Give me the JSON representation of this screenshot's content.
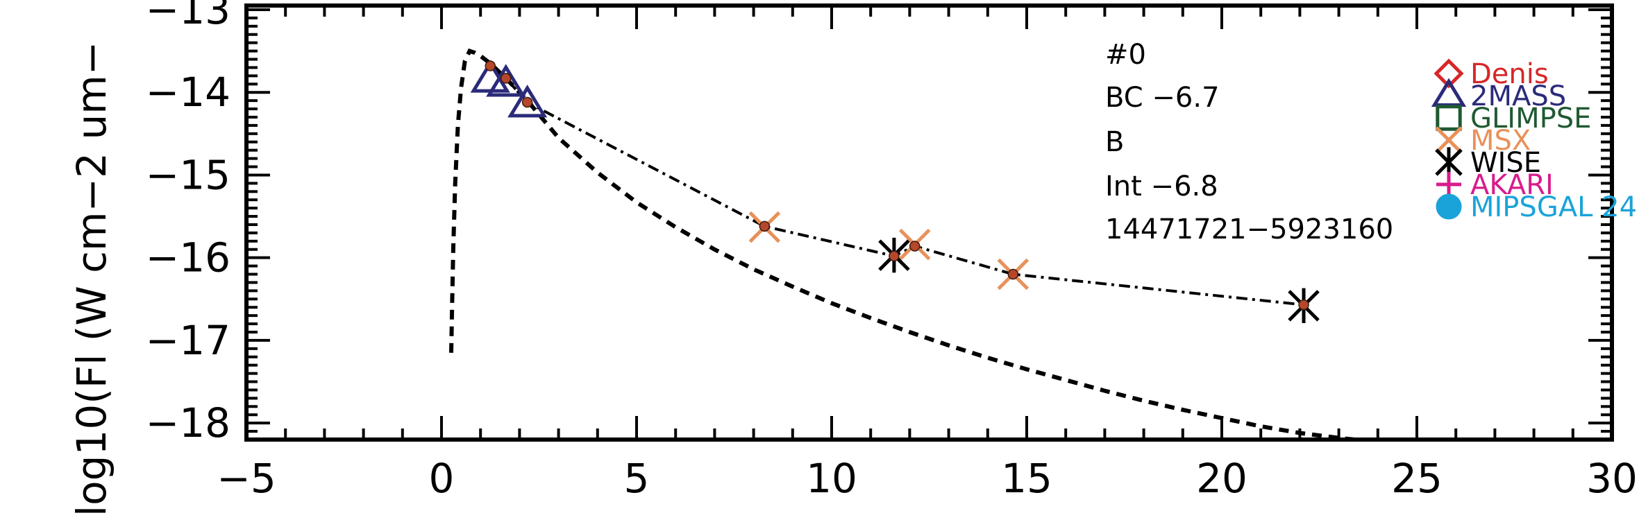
{
  "chart_data": {
    "type": "scatter",
    "title": "",
    "xlabel": "",
    "ylabel": "log10(Fl (W cm−2 um−",
    "xlim": [
      -5,
      30
    ],
    "ylim": [
      -18.2,
      -12.95
    ],
    "x_ticks": [
      -5,
      0,
      5,
      10,
      15,
      20,
      25,
      30
    ],
    "x_tick_labels": [
      "−5",
      "0",
      "5",
      "10",
      "15",
      "20",
      "25",
      "30"
    ],
    "y_ticks": [
      -18,
      -17,
      -16,
      -15,
      -14,
      -13
    ],
    "y_tick_labels": [
      "−18",
      "−17",
      "−16",
      "−15",
      "−14",
      "−13"
    ],
    "annotations": [
      "#0",
      "BC −6.7",
      "B",
      "Int −6.8",
      "14471721−5923160"
    ],
    "legend": {
      "placement": "top-right",
      "entries": [
        {
          "label": "Denis",
          "marker": "diamond",
          "color": "#d62728"
        },
        {
          "label": "2MASS",
          "marker": "triangle",
          "color": "#2b2b7a"
        },
        {
          "label": "GLIMPSE",
          "marker": "square",
          "color": "#1f5a32"
        },
        {
          "label": "MSX",
          "marker": "x",
          "color": "#e8915a"
        },
        {
          "label": "WISE",
          "marker": "asterisk",
          "color": "#000000"
        },
        {
          "label": "AKARI",
          "marker": "plus",
          "color": "#d81b8c"
        },
        {
          "label": "MIPSGAL 24",
          "marker": "circle",
          "color": "#1aa3d9"
        }
      ]
    },
    "series": [
      {
        "marker": "diamond",
        "color": "#d62728",
        "points": []
      },
      {
        "marker": "triangle",
        "color": "#2b2b7a",
        "points": [
          [
            1.25,
            -13.85
          ],
          [
            1.65,
            -13.9
          ],
          [
            2.2,
            -14.15
          ]
        ]
      },
      {
        "marker": "square",
        "color": "#1f5a32",
        "points": []
      },
      {
        "marker": "x",
        "color": "#e8915a",
        "points": [
          [
            8.28,
            -15.63
          ],
          [
            12.13,
            -15.84
          ],
          [
            14.65,
            -16.2
          ]
        ]
      },
      {
        "marker": "asterisk",
        "color": "#000000",
        "points": [
          [
            11.6,
            -15.97
          ],
          [
            22.1,
            -16.58
          ]
        ]
      },
      {
        "marker": "plus",
        "color": "#d81b8c",
        "points": []
      },
      {
        "marker": "circle",
        "color": "#1aa3d9",
        "points": []
      }
    ],
    "model_points": {
      "color": "#b5482a",
      "points": [
        [
          1.25,
          -13.68
        ],
        [
          1.65,
          -13.83
        ],
        [
          2.2,
          -14.12
        ],
        [
          8.28,
          -15.62
        ],
        [
          11.6,
          -15.98
        ],
        [
          12.13,
          -15.86
        ],
        [
          14.65,
          -16.2
        ],
        [
          22.1,
          -16.57
        ]
      ]
    },
    "dash_dot_curve": {
      "x": [
        1.25,
        1.65,
        2.2,
        8.28,
        11.6,
        12.13,
        14.65,
        22.1
      ],
      "y": [
        -13.68,
        -13.83,
        -14.12,
        -15.62,
        -15.98,
        -15.86,
        -16.2,
        -16.57
      ]
    },
    "dashed_curve": {
      "x": [
        0.25,
        0.27,
        0.3,
        0.35,
        0.42,
        0.5,
        0.6,
        0.72,
        0.85,
        1.0,
        1.25,
        1.65,
        2.2,
        3.0,
        4.0,
        5.0,
        6.0,
        7.0,
        8.0,
        9.0,
        10.0,
        11.0,
        12.0,
        13.0,
        14.0,
        15.0,
        16.0,
        17.0,
        18.0,
        19.0,
        20.0,
        21.0,
        22.0,
        23.0,
        23.8
      ],
      "y": [
        -17.15,
        -16.6,
        -15.9,
        -15.1,
        -14.4,
        -13.95,
        -13.62,
        -13.5,
        -13.52,
        -13.56,
        -13.65,
        -13.83,
        -14.1,
        -14.55,
        -14.97,
        -15.33,
        -15.63,
        -15.9,
        -16.14,
        -16.35,
        -16.55,
        -16.73,
        -16.9,
        -17.06,
        -17.21,
        -17.35,
        -17.48,
        -17.61,
        -17.73,
        -17.84,
        -17.94,
        -18.04,
        -18.12,
        -18.18,
        -18.22
      ]
    }
  }
}
